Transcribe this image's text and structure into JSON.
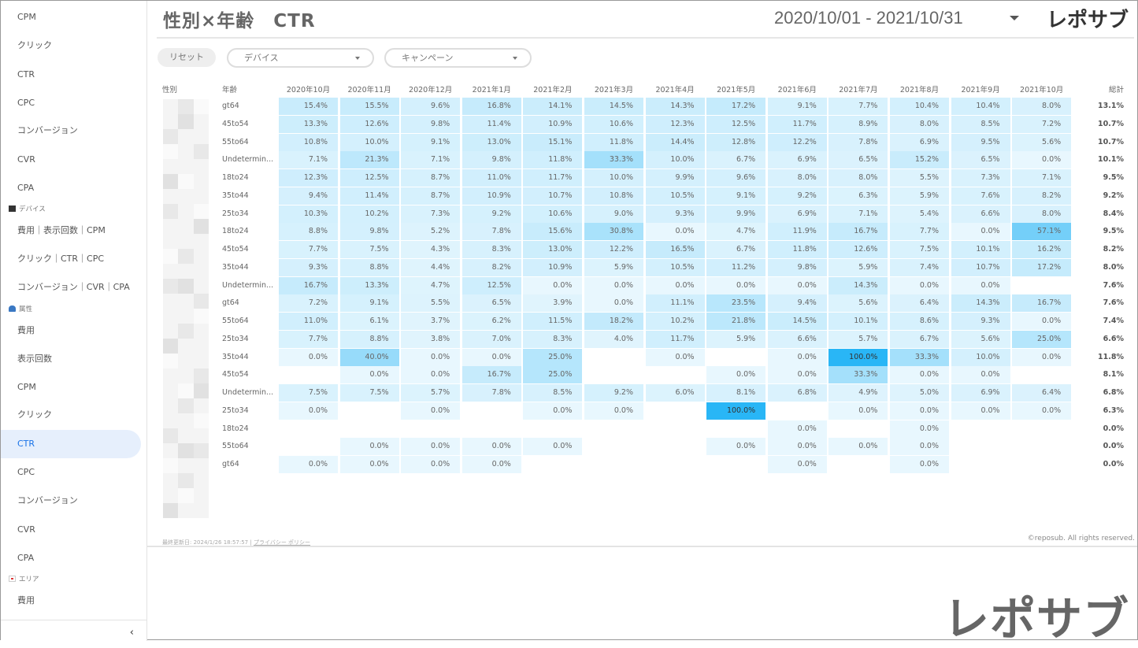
{
  "sidebar": {
    "items": [
      {
        "label": "CPM"
      },
      {
        "label": "クリック"
      },
      {
        "label": "CTR"
      },
      {
        "label": "CPC"
      },
      {
        "label": "コンバージョン"
      },
      {
        "label": "CVR"
      },
      {
        "label": "CPA"
      },
      {
        "label": "費用｜表示回数｜CPM"
      },
      {
        "label": "クリック｜CTR｜CPC"
      },
      {
        "label": "コンバージョン｜CVR｜CPA"
      },
      {
        "label": "費用"
      },
      {
        "label": "表示回数"
      },
      {
        "label": "CPM"
      },
      {
        "label": "クリック"
      },
      {
        "label": "CTR"
      },
      {
        "label": "CPC"
      },
      {
        "label": "コンバージョン"
      },
      {
        "label": "CVR"
      },
      {
        "label": "CPA"
      },
      {
        "label": "費用"
      }
    ],
    "sections": {
      "device": "デバイス",
      "attribute": "属性",
      "area": "エリア"
    },
    "active_label": "CTR",
    "collapse_icon": "‹"
  },
  "header": {
    "title": "性別×年齢　CTR",
    "date_range": "2020/10/01 - 2021/10/31",
    "logo": "レポサブ"
  },
  "filters": {
    "reset": "リセット",
    "device": "デバイス",
    "campaign": "キャンペーン"
  },
  "colors": {
    "accent": "#29b6f6",
    "active_bg": "#e6effc",
    "active_text": "#1a73e8"
  },
  "table": {
    "headers": {
      "gender": "性別",
      "age": "年齢",
      "total": "総計"
    },
    "months": [
      "2020年10月",
      "2020年11月",
      "2020年12月",
      "2021年1月",
      "2021年2月",
      "2021年3月",
      "2021年4月",
      "2021年5月",
      "2021年6月",
      "2021年7月",
      "2021年8月",
      "2021年9月",
      "2021年10月"
    ],
    "rows": [
      {
        "age": "gt64",
        "values": [
          "15.4%",
          "15.5%",
          "9.6%",
          "16.8%",
          "14.1%",
          "14.5%",
          "14.3%",
          "17.2%",
          "9.1%",
          "7.7%",
          "10.4%",
          "10.4%",
          "8.0%"
        ],
        "total": "13.1%"
      },
      {
        "age": "45to54",
        "values": [
          "13.3%",
          "12.6%",
          "9.8%",
          "11.4%",
          "10.9%",
          "10.6%",
          "12.3%",
          "12.5%",
          "11.7%",
          "8.9%",
          "8.0%",
          "8.5%",
          "7.2%"
        ],
        "total": "10.7%"
      },
      {
        "age": "55to64",
        "values": [
          "10.8%",
          "10.0%",
          "9.1%",
          "13.0%",
          "15.1%",
          "11.8%",
          "14.4%",
          "12.8%",
          "12.2%",
          "7.8%",
          "6.9%",
          "9.5%",
          "5.6%"
        ],
        "total": "10.7%"
      },
      {
        "age": "Undetermin...",
        "values": [
          "7.1%",
          "21.3%",
          "7.1%",
          "9.8%",
          "11.8%",
          "33.3%",
          "10.0%",
          "6.7%",
          "6.9%",
          "6.5%",
          "15.2%",
          "6.5%",
          "0.0%"
        ],
        "total": "10.1%"
      },
      {
        "age": "18to24",
        "values": [
          "12.3%",
          "12.5%",
          "8.7%",
          "11.0%",
          "11.7%",
          "10.0%",
          "9.9%",
          "9.6%",
          "8.0%",
          "8.0%",
          "5.5%",
          "7.3%",
          "7.1%"
        ],
        "total": "9.5%"
      },
      {
        "age": "35to44",
        "values": [
          "9.4%",
          "11.4%",
          "8.7%",
          "10.9%",
          "10.7%",
          "10.8%",
          "10.5%",
          "9.1%",
          "9.2%",
          "6.3%",
          "5.9%",
          "7.6%",
          "8.2%"
        ],
        "total": "9.2%"
      },
      {
        "age": "25to34",
        "values": [
          "10.3%",
          "10.2%",
          "7.3%",
          "9.2%",
          "10.6%",
          "9.0%",
          "9.3%",
          "9.9%",
          "6.9%",
          "7.1%",
          "5.4%",
          "6.6%",
          "8.0%"
        ],
        "total": "8.4%"
      },
      {
        "age": "18to24",
        "values": [
          "8.8%",
          "9.8%",
          "5.2%",
          "7.8%",
          "15.6%",
          "30.8%",
          "0.0%",
          "4.7%",
          "11.9%",
          "16.7%",
          "7.7%",
          "0.0%",
          "57.1%"
        ],
        "total": "9.5%"
      },
      {
        "age": "45to54",
        "values": [
          "7.7%",
          "7.5%",
          "4.3%",
          "8.3%",
          "13.0%",
          "12.2%",
          "16.5%",
          "6.7%",
          "11.8%",
          "12.6%",
          "7.5%",
          "10.1%",
          "16.2%"
        ],
        "total": "8.2%"
      },
      {
        "age": "35to44",
        "values": [
          "9.3%",
          "8.8%",
          "4.4%",
          "8.2%",
          "10.9%",
          "5.9%",
          "10.5%",
          "11.2%",
          "9.8%",
          "5.9%",
          "7.4%",
          "10.7%",
          "17.2%"
        ],
        "total": "8.0%"
      },
      {
        "age": "Undetermin...",
        "values": [
          "16.7%",
          "13.3%",
          "4.7%",
          "12.5%",
          "0.0%",
          "0.0%",
          "0.0%",
          "0.0%",
          "0.0%",
          "14.3%",
          "0.0%",
          "0.0%",
          null
        ],
        "total": "7.6%"
      },
      {
        "age": "gt64",
        "values": [
          "7.2%",
          "9.1%",
          "5.5%",
          "6.5%",
          "3.9%",
          "0.0%",
          "11.1%",
          "23.5%",
          "9.4%",
          "5.6%",
          "6.4%",
          "14.3%",
          "16.7%"
        ],
        "total": "7.6%"
      },
      {
        "age": "55to64",
        "values": [
          "11.0%",
          "6.1%",
          "3.7%",
          "6.2%",
          "11.5%",
          "18.2%",
          "10.2%",
          "21.8%",
          "14.5%",
          "10.1%",
          "8.6%",
          "9.3%",
          "0.0%"
        ],
        "total": "7.4%"
      },
      {
        "age": "25to34",
        "values": [
          "7.7%",
          "8.8%",
          "3.8%",
          "7.0%",
          "8.3%",
          "4.0%",
          "11.7%",
          "5.9%",
          "6.6%",
          "5.7%",
          "6.7%",
          "5.6%",
          "25.0%"
        ],
        "total": "6.6%"
      },
      {
        "age": "35to44",
        "values": [
          "0.0%",
          "40.0%",
          "0.0%",
          "0.0%",
          "25.0%",
          null,
          "0.0%",
          null,
          "0.0%",
          "100.0%",
          "33.3%",
          "10.0%",
          "0.0%"
        ],
        "total": "11.8%"
      },
      {
        "age": "45to54",
        "values": [
          null,
          "0.0%",
          "0.0%",
          "16.7%",
          "25.0%",
          null,
          null,
          "0.0%",
          "0.0%",
          "33.3%",
          "0.0%",
          "0.0%",
          null
        ],
        "total": "8.1%"
      },
      {
        "age": "Undetermin...",
        "values": [
          "7.5%",
          "7.5%",
          "5.7%",
          "7.8%",
          "8.5%",
          "9.2%",
          "6.0%",
          "8.1%",
          "6.8%",
          "4.9%",
          "5.0%",
          "6.9%",
          "6.4%"
        ],
        "total": "6.8%"
      },
      {
        "age": "25to34",
        "values": [
          "0.0%",
          null,
          "0.0%",
          null,
          "0.0%",
          "0.0%",
          null,
          "100.0%",
          null,
          "0.0%",
          "0.0%",
          "0.0%",
          "0.0%"
        ],
        "total": "6.3%"
      },
      {
        "age": "18to24",
        "values": [
          null,
          null,
          null,
          null,
          null,
          null,
          null,
          null,
          "0.0%",
          null,
          "0.0%",
          null,
          null
        ],
        "total": "0.0%"
      },
      {
        "age": "55to64",
        "values": [
          null,
          "0.0%",
          "0.0%",
          "0.0%",
          "0.0%",
          null,
          null,
          "0.0%",
          "0.0%",
          "0.0%",
          "0.0%",
          null,
          null
        ],
        "total": "0.0%"
      },
      {
        "age": "gt64",
        "values": [
          "0.0%",
          "0.0%",
          "0.0%",
          "0.0%",
          null,
          null,
          null,
          null,
          "0.0%",
          null,
          "0.0%",
          null,
          null
        ],
        "total": "0.0%"
      }
    ]
  },
  "footer": {
    "last_updated": "最終更新日: 2024/1/26 18:57:57",
    "separator": "|",
    "privacy": "プライバシー ポリシー",
    "copyright": "©reposub. All rights reserved."
  },
  "watermark_logo": "レポサブ"
}
